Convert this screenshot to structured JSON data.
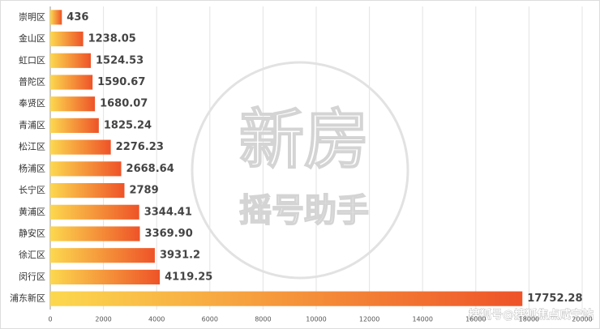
{
  "chart_data": {
    "type": "hbar",
    "categories": [
      "崇明区",
      "金山区",
      "虹口区",
      "普陀区",
      "奉贤区",
      "青浦区",
      "松江区",
      "杨浦区",
      "长宁区",
      "黄浦区",
      "静安区",
      "徐汇区",
      "闵行区",
      "浦东新区"
    ],
    "values": [
      436,
      1238.05,
      1524.53,
      1590.67,
      1680.07,
      1825.24,
      2276.23,
      2668.64,
      2789,
      3344.41,
      3369.9,
      3931.2,
      4119.25,
      17752.28
    ],
    "value_labels": [
      "436",
      "1238.05",
      "1524.53",
      "1590.67",
      "1680.07",
      "1825.24",
      "2276.23",
      "2668.64",
      "2789",
      "3344.41",
      "3369.90",
      "3931.2",
      "4119.25",
      "17752.28"
    ],
    "gradient": [
      "#fcd84e",
      "#ee5328"
    ],
    "xlim": [
      0,
      20000
    ],
    "xticks": [
      0,
      2000,
      4000,
      6000,
      8000,
      10000,
      12000,
      14000,
      16000,
      18000,
      20000
    ],
    "grid": true,
    "watermark": [
      "新房",
      "摇号助手"
    ],
    "source": "搜狐号@搜狐焦点咸宁站"
  }
}
